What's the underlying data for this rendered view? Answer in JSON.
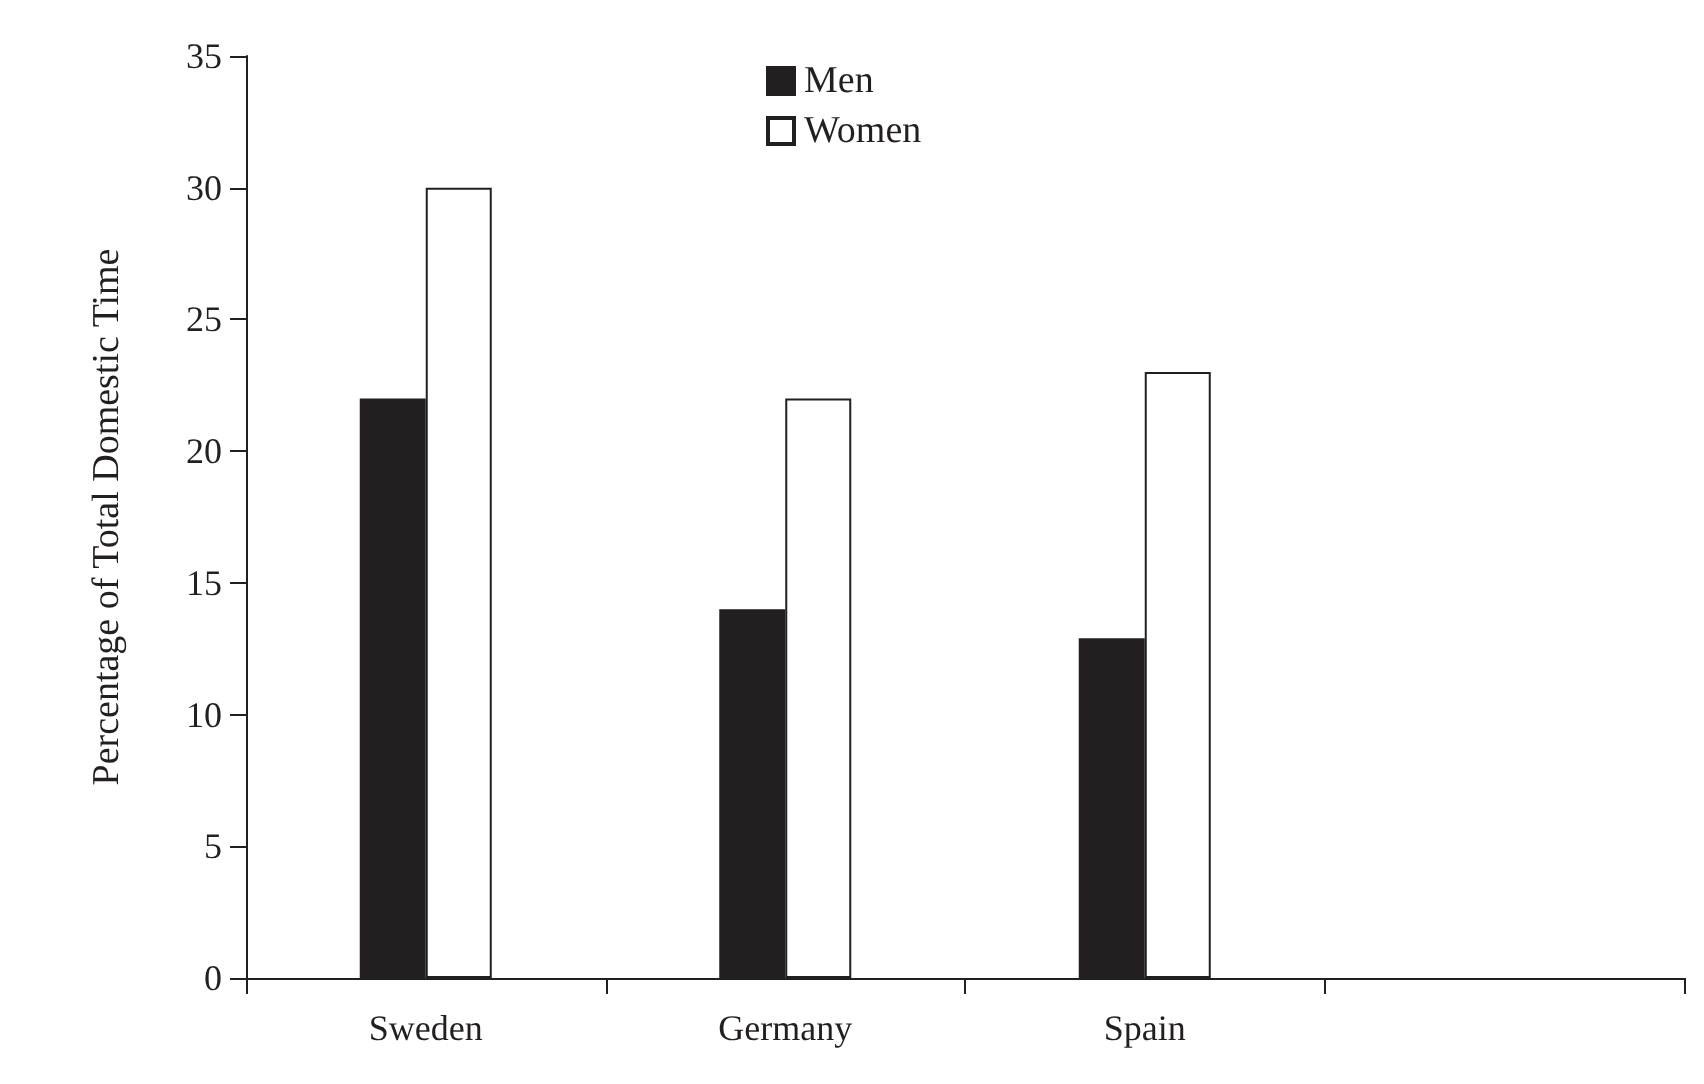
{
  "chart_data": {
    "type": "bar",
    "ylabel": "Percentage of Total Domestic Time",
    "categories": [
      "Sweden",
      "Germany",
      "Spain",
      null
    ],
    "series": [
      {
        "name": "Men",
        "color": "#231f20",
        "values": [
          22,
          14,
          12.9,
          null
        ]
      },
      {
        "name": "Women",
        "color": "#ffffff",
        "values": [
          30,
          22,
          23,
          null
        ]
      }
    ],
    "ylim": [
      0,
      35
    ],
    "yticks": [
      0,
      5,
      10,
      15,
      20,
      25,
      30,
      35
    ],
    "grid": false,
    "legend": "top"
  }
}
